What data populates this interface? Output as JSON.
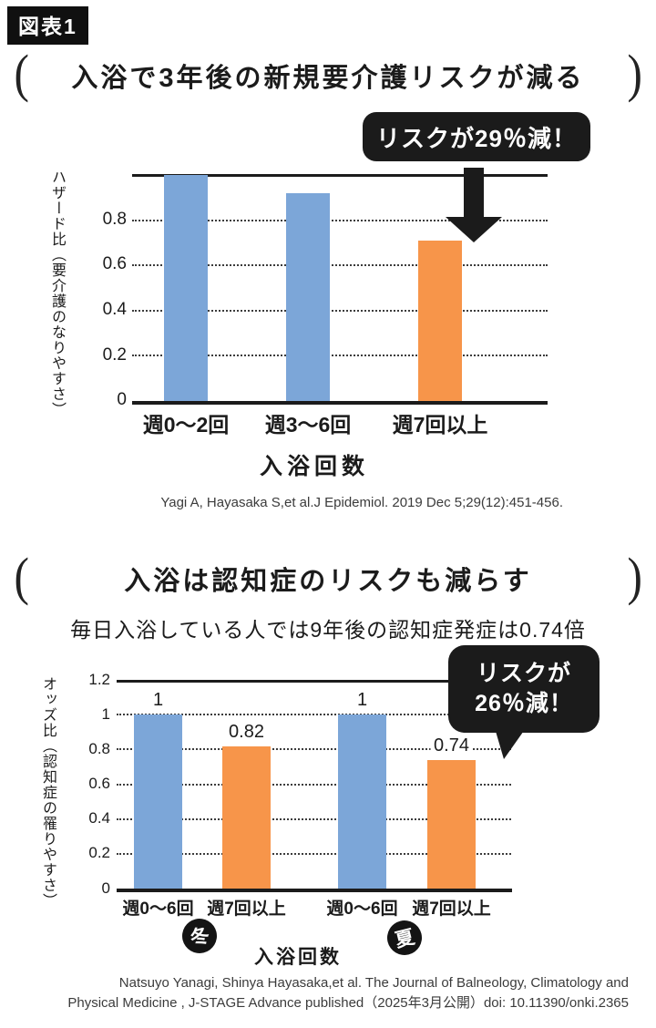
{
  "figure_tag": "図表1",
  "brackets": [
    "(",
    ")"
  ],
  "colors": {
    "blue": "#7CA6D8",
    "orange": "#F7954A",
    "black": "#1B1B1B"
  },
  "chart_data": [
    {
      "type": "bar",
      "title": "入浴で3年後の新規要介護リスクが減る",
      "callout": "リスクが29％減！",
      "categories": [
        "週0〜2回",
        "週3〜6回",
        "週7回以上"
      ],
      "values": [
        1.0,
        0.92,
        0.71
      ],
      "bar_colors": [
        "blue",
        "blue",
        "orange"
      ],
      "value_labels": [
        "",
        "",
        ""
      ],
      "xlabel": "入浴回数",
      "ylabel": "ハザード比（要介護のなりやすさ）",
      "ylim": [
        0,
        1.0
      ],
      "yticks": [
        {
          "v": 0,
          "label": "0"
        },
        {
          "v": 0.2,
          "label": "0.2"
        },
        {
          "v": 0.4,
          "label": "0.4"
        },
        {
          "v": 0.6,
          "label": "0.6"
        },
        {
          "v": 0.8,
          "label": "0.8"
        }
      ],
      "grid": "horizontal-dotted",
      "legend": "none",
      "citation": "Yagi A, Hayasaka S,et al.J Epidemiol. 2019 Dec 5;29(12):451-456."
    },
    {
      "type": "bar",
      "title": "入浴は認知症のリスクも減らす",
      "subtitle": "毎日入浴している人では9年後の認知症発症は0.74倍",
      "callout_lines": [
        "リスクが",
        "26％減！"
      ],
      "categories": [
        "週0〜6回",
        "週7回以上",
        "週0〜6回",
        "週7回以上"
      ],
      "group_labels": [
        "冬",
        "夏"
      ],
      "values": [
        1,
        0.82,
        1,
        0.74
      ],
      "bar_colors": [
        "blue",
        "orange",
        "blue",
        "orange"
      ],
      "value_labels": [
        "1",
        "0.82",
        "1",
        "0.74"
      ],
      "xlabel": "入浴回数",
      "ylabel": "オッズ比（認知症の罹りやすさ）",
      "ylim": [
        0,
        1.2
      ],
      "yticks": [
        {
          "v": 0,
          "label": "0"
        },
        {
          "v": 0.2,
          "label": "0.2"
        },
        {
          "v": 0.4,
          "label": "0.4"
        },
        {
          "v": 0.6,
          "label": "0.6"
        },
        {
          "v": 0.8,
          "label": "0.8"
        },
        {
          "v": 1,
          "label": "1"
        },
        {
          "v": 1.2,
          "label": "1.2"
        }
      ],
      "grid": "horizontal-dotted",
      "legend": "none",
      "citation_lines": [
        "Natsuyo Yanagi, Shinya Hayasaka,et al. The Journal of Balneology, Climatology and",
        "Physical Medicine , J-STAGE Advance published（2025年3月公開）doi: 10.11390/onki.2365"
      ]
    }
  ]
}
